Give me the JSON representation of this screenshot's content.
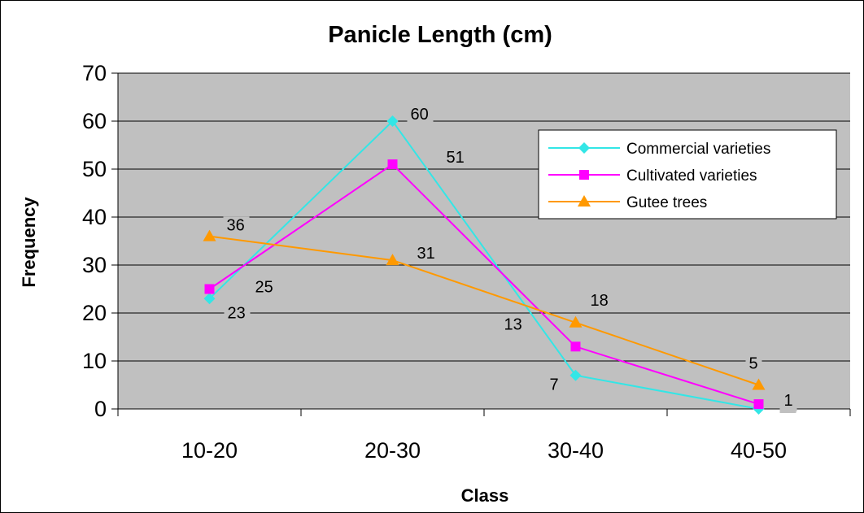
{
  "chart_data": {
    "type": "line",
    "title": "Panicle Length (cm)",
    "xlabel": "Class",
    "ylabel": "Frequency",
    "categories": [
      "10-20",
      "20-30",
      "30-40",
      "40-50"
    ],
    "ylim": [
      0,
      70
    ],
    "yticks": [
      0,
      10,
      20,
      30,
      40,
      50,
      60,
      70
    ],
    "grid": true,
    "legend_position": "top-right",
    "plot_background": "#c0c0c0",
    "series": [
      {
        "name": "Commercial varieties",
        "values": [
          23,
          60,
          7,
          0
        ],
        "color": "#33e6e6",
        "marker": "diamond"
      },
      {
        "name": "Cultivated varieties",
        "values": [
          25,
          51,
          13,
          1
        ],
        "color": "#ff00ff",
        "marker": "square"
      },
      {
        "name": "Gutee trees",
        "values": [
          36,
          31,
          18,
          5
        ],
        "color": "#ff9900",
        "marker": "triangle"
      }
    ]
  }
}
